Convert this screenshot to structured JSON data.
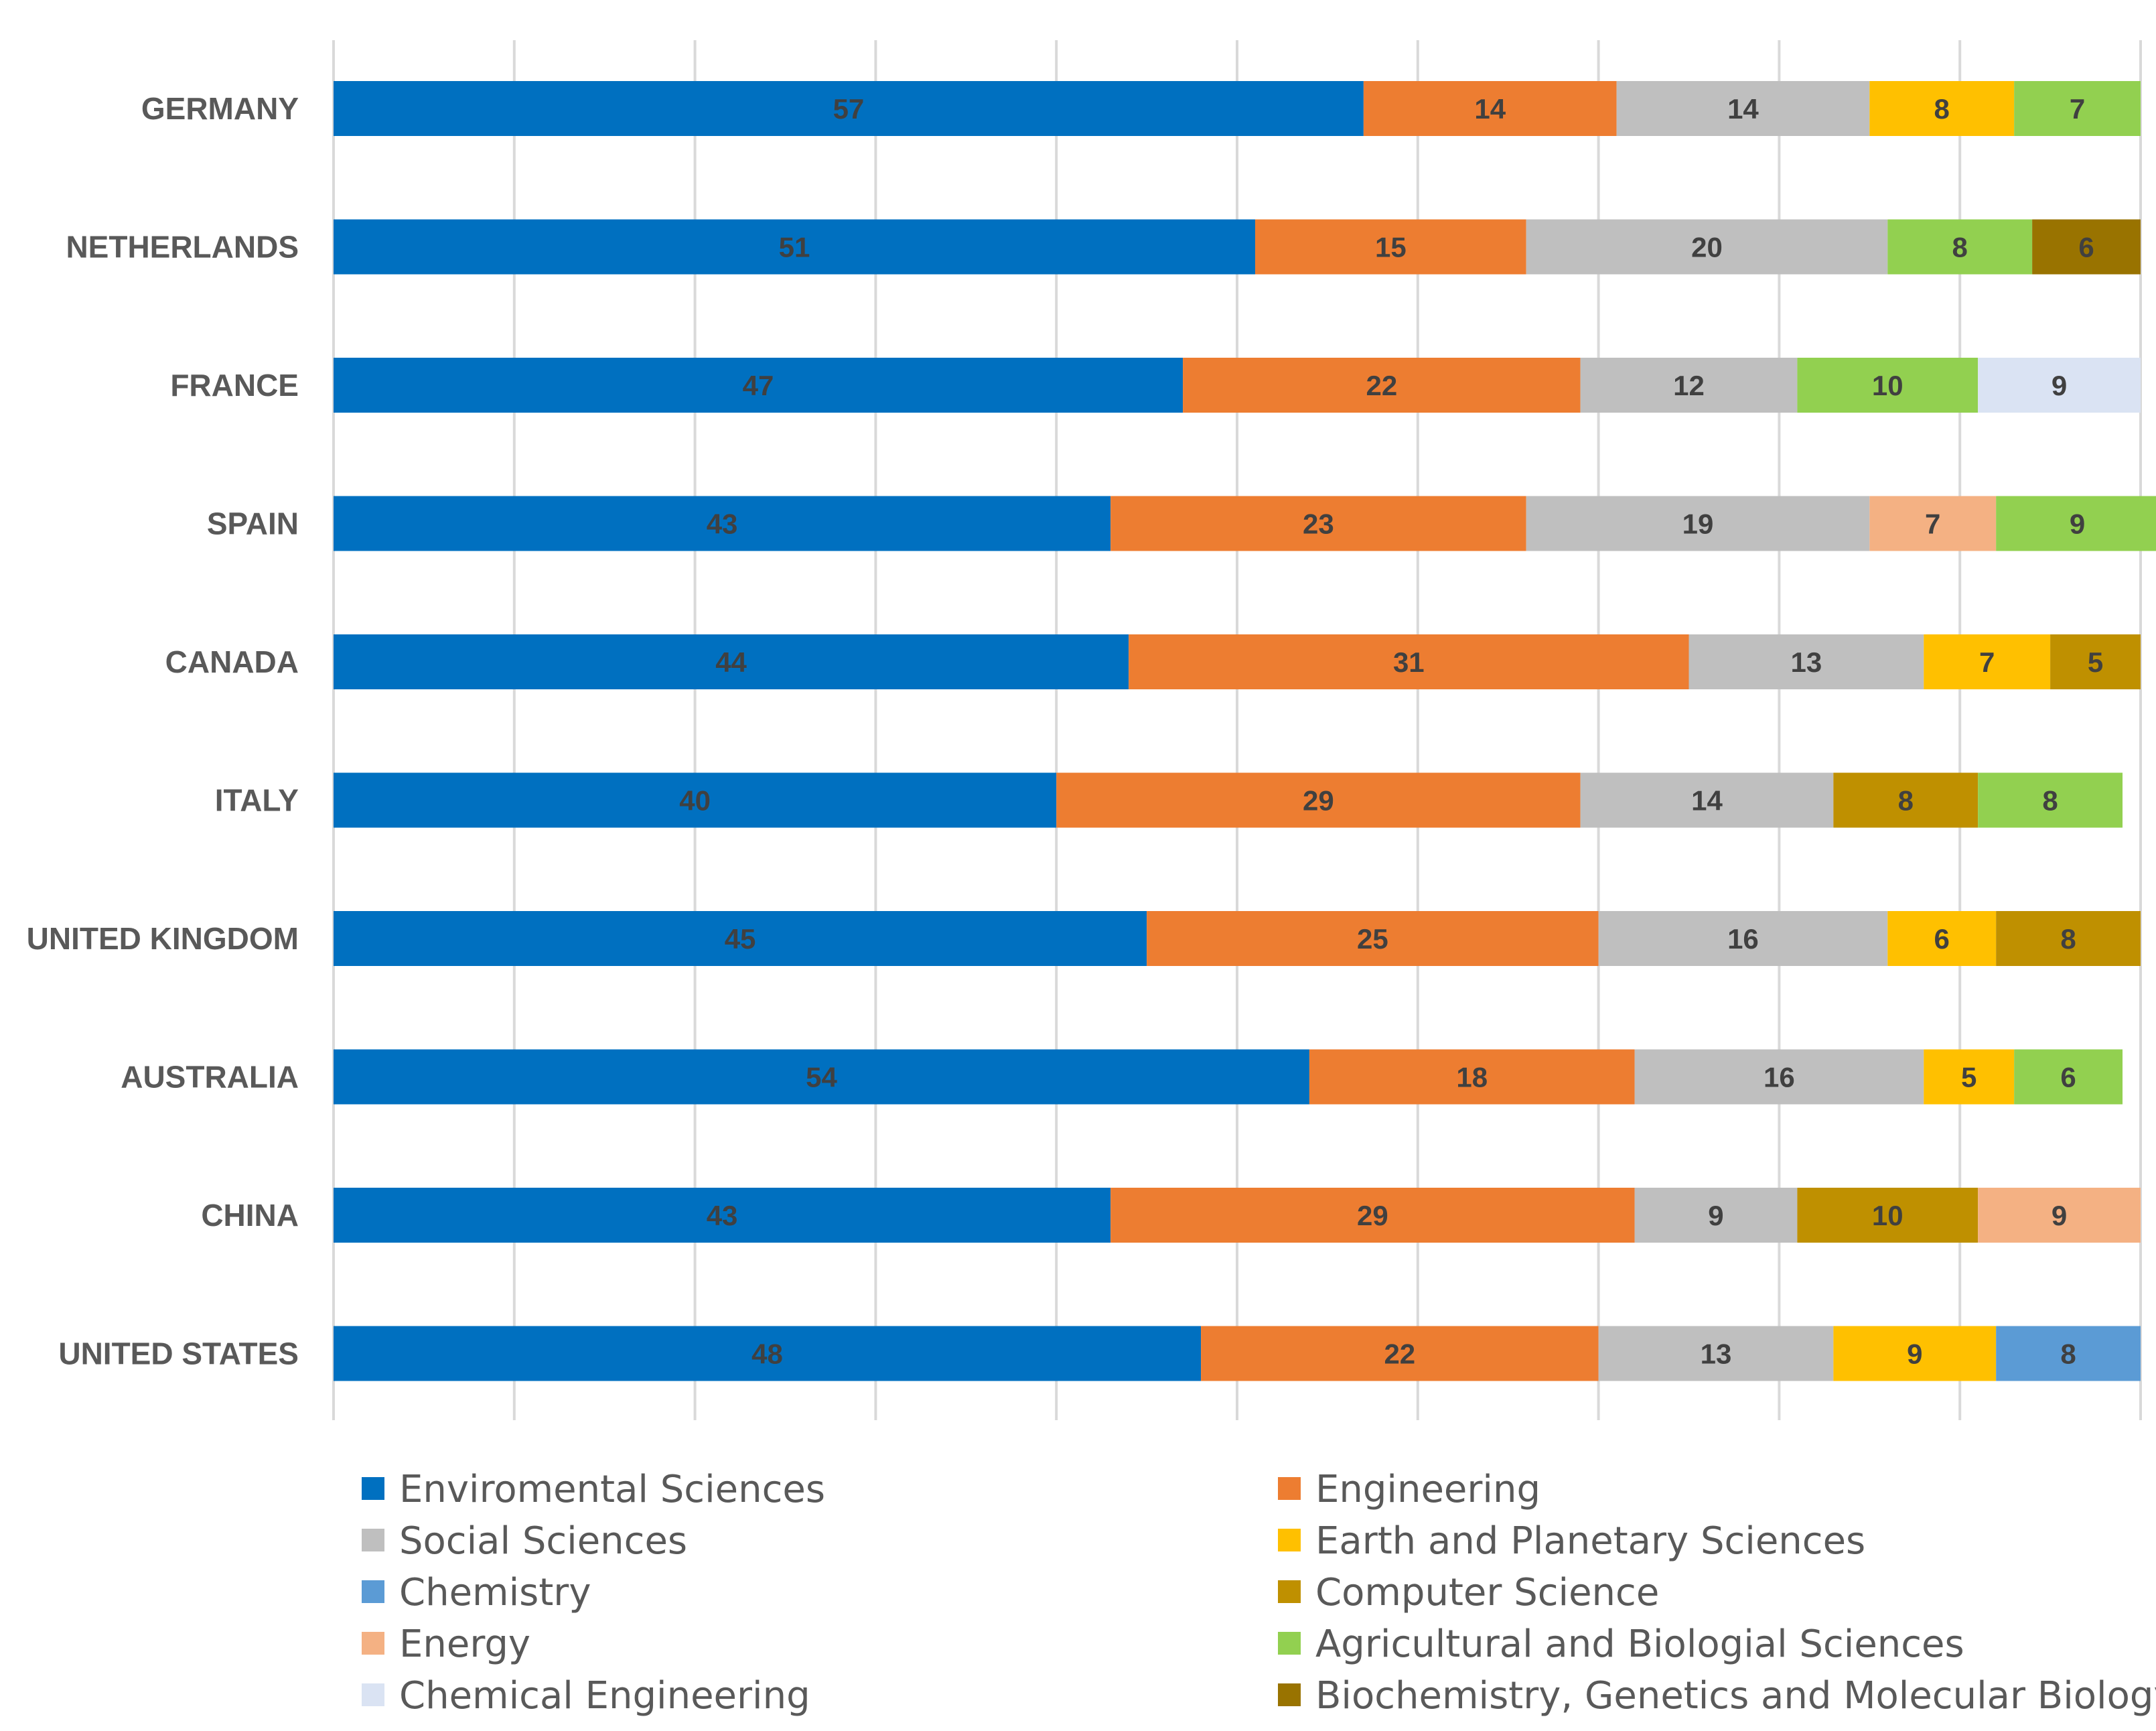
{
  "chart_data": {
    "type": "bar",
    "orientation": "horizontal",
    "stacked": true,
    "normalized_to_100": true,
    "title": "",
    "xlabel": "",
    "ylabel": "",
    "xlim": [
      0,
      100
    ],
    "grid": true,
    "legend_position": "bottom",
    "categories": [
      "GERMANY",
      "NETHERLANDS",
      "FRANCE",
      "SPAIN",
      "CANADA",
      "ITALY",
      "UNITED KINGDOM",
      "AUSTRALIA",
      "CHINA",
      "UNITED STATES"
    ],
    "series": [
      {
        "name": "Enviromental Sciences",
        "color": "#0070C0",
        "values": [
          57,
          51,
          47,
          43,
          44,
          40,
          45,
          54,
          43,
          48
        ]
      },
      {
        "name": "Engineering",
        "color": "#ED7D31",
        "values": [
          14,
          15,
          22,
          23,
          31,
          29,
          25,
          18,
          29,
          22
        ]
      },
      {
        "name": "Social Sciences",
        "color": "#BFBFBF",
        "values": [
          14,
          20,
          12,
          19,
          13,
          14,
          16,
          16,
          9,
          13
        ]
      },
      {
        "name": "Earth and Planetary Sciences",
        "color": "#FFC000",
        "values": [
          8,
          null,
          null,
          null,
          7,
          null,
          6,
          5,
          null,
          9
        ]
      },
      {
        "name": "Chemistry",
        "color": "#5B9BD5",
        "values": [
          null,
          null,
          null,
          null,
          null,
          null,
          null,
          null,
          null,
          8
        ]
      },
      {
        "name": "Computer Science",
        "color": "#BF9000",
        "values": [
          null,
          null,
          null,
          null,
          5,
          8,
          8,
          null,
          10,
          null
        ]
      },
      {
        "name": "Energy",
        "color": "#F4B183",
        "values": [
          null,
          null,
          null,
          7,
          null,
          null,
          null,
          null,
          9,
          null
        ]
      },
      {
        "name": "Agricultural and Biologial Sciences",
        "color": "#92D050",
        "values": [
          7,
          8,
          10,
          9,
          null,
          8,
          null,
          6,
          null,
          null
        ]
      },
      {
        "name": "Chemical Engineering",
        "color": "#DAE3F3",
        "values": [
          null,
          null,
          9,
          null,
          null,
          null,
          null,
          null,
          null,
          null
        ]
      },
      {
        "name": "Biochemistry, Genetics and Molecular Biology",
        "color": "#997300",
        "values": [
          null,
          6,
          null,
          null,
          null,
          null,
          null,
          null,
          null,
          null
        ]
      }
    ],
    "stack_order": [
      [
        "Enviromental Sciences",
        "Engineering",
        "Social Sciences",
        "Earth and Planetary Sciences",
        "Agricultural and Biologial Sciences"
      ],
      [
        "Enviromental Sciences",
        "Engineering",
        "Social Sciences",
        "Agricultural and Biologial Sciences",
        "Biochemistry, Genetics and Molecular Biology"
      ],
      [
        "Enviromental Sciences",
        "Engineering",
        "Social Sciences",
        "Agricultural and Biologial Sciences",
        "Chemical Engineering"
      ],
      [
        "Enviromental Sciences",
        "Engineering",
        "Social Sciences",
        "Energy",
        "Agricultural and Biologial Sciences"
      ],
      [
        "Enviromental Sciences",
        "Engineering",
        "Social Sciences",
        "Earth and Planetary Sciences",
        "Computer Science"
      ],
      [
        "Enviromental Sciences",
        "Engineering",
        "Social Sciences",
        "Computer Science",
        "Agricultural and Biologial Sciences"
      ],
      [
        "Enviromental Sciences",
        "Engineering",
        "Social Sciences",
        "Earth and Planetary Sciences",
        "Computer Science"
      ],
      [
        "Enviromental Sciences",
        "Engineering",
        "Social Sciences",
        "Earth and Planetary Sciences",
        "Agricultural and Biologial Sciences"
      ],
      [
        "Enviromental Sciences",
        "Engineering",
        "Social Sciences",
        "Computer Science",
        "Energy"
      ],
      [
        "Enviromental Sciences",
        "Engineering",
        "Social Sciences",
        "Earth and Planetary Sciences",
        "Chemistry"
      ]
    ],
    "legend": [
      "Enviromental Sciences",
      "Engineering",
      "Social Sciences",
      "Earth and Planetary Sciences",
      "Chemistry",
      "Computer Science",
      "Energy",
      "Agricultural and Biologial Sciences",
      "Chemical Engineering",
      "Biochemistry, Genetics and Molecular Biology"
    ]
  }
}
